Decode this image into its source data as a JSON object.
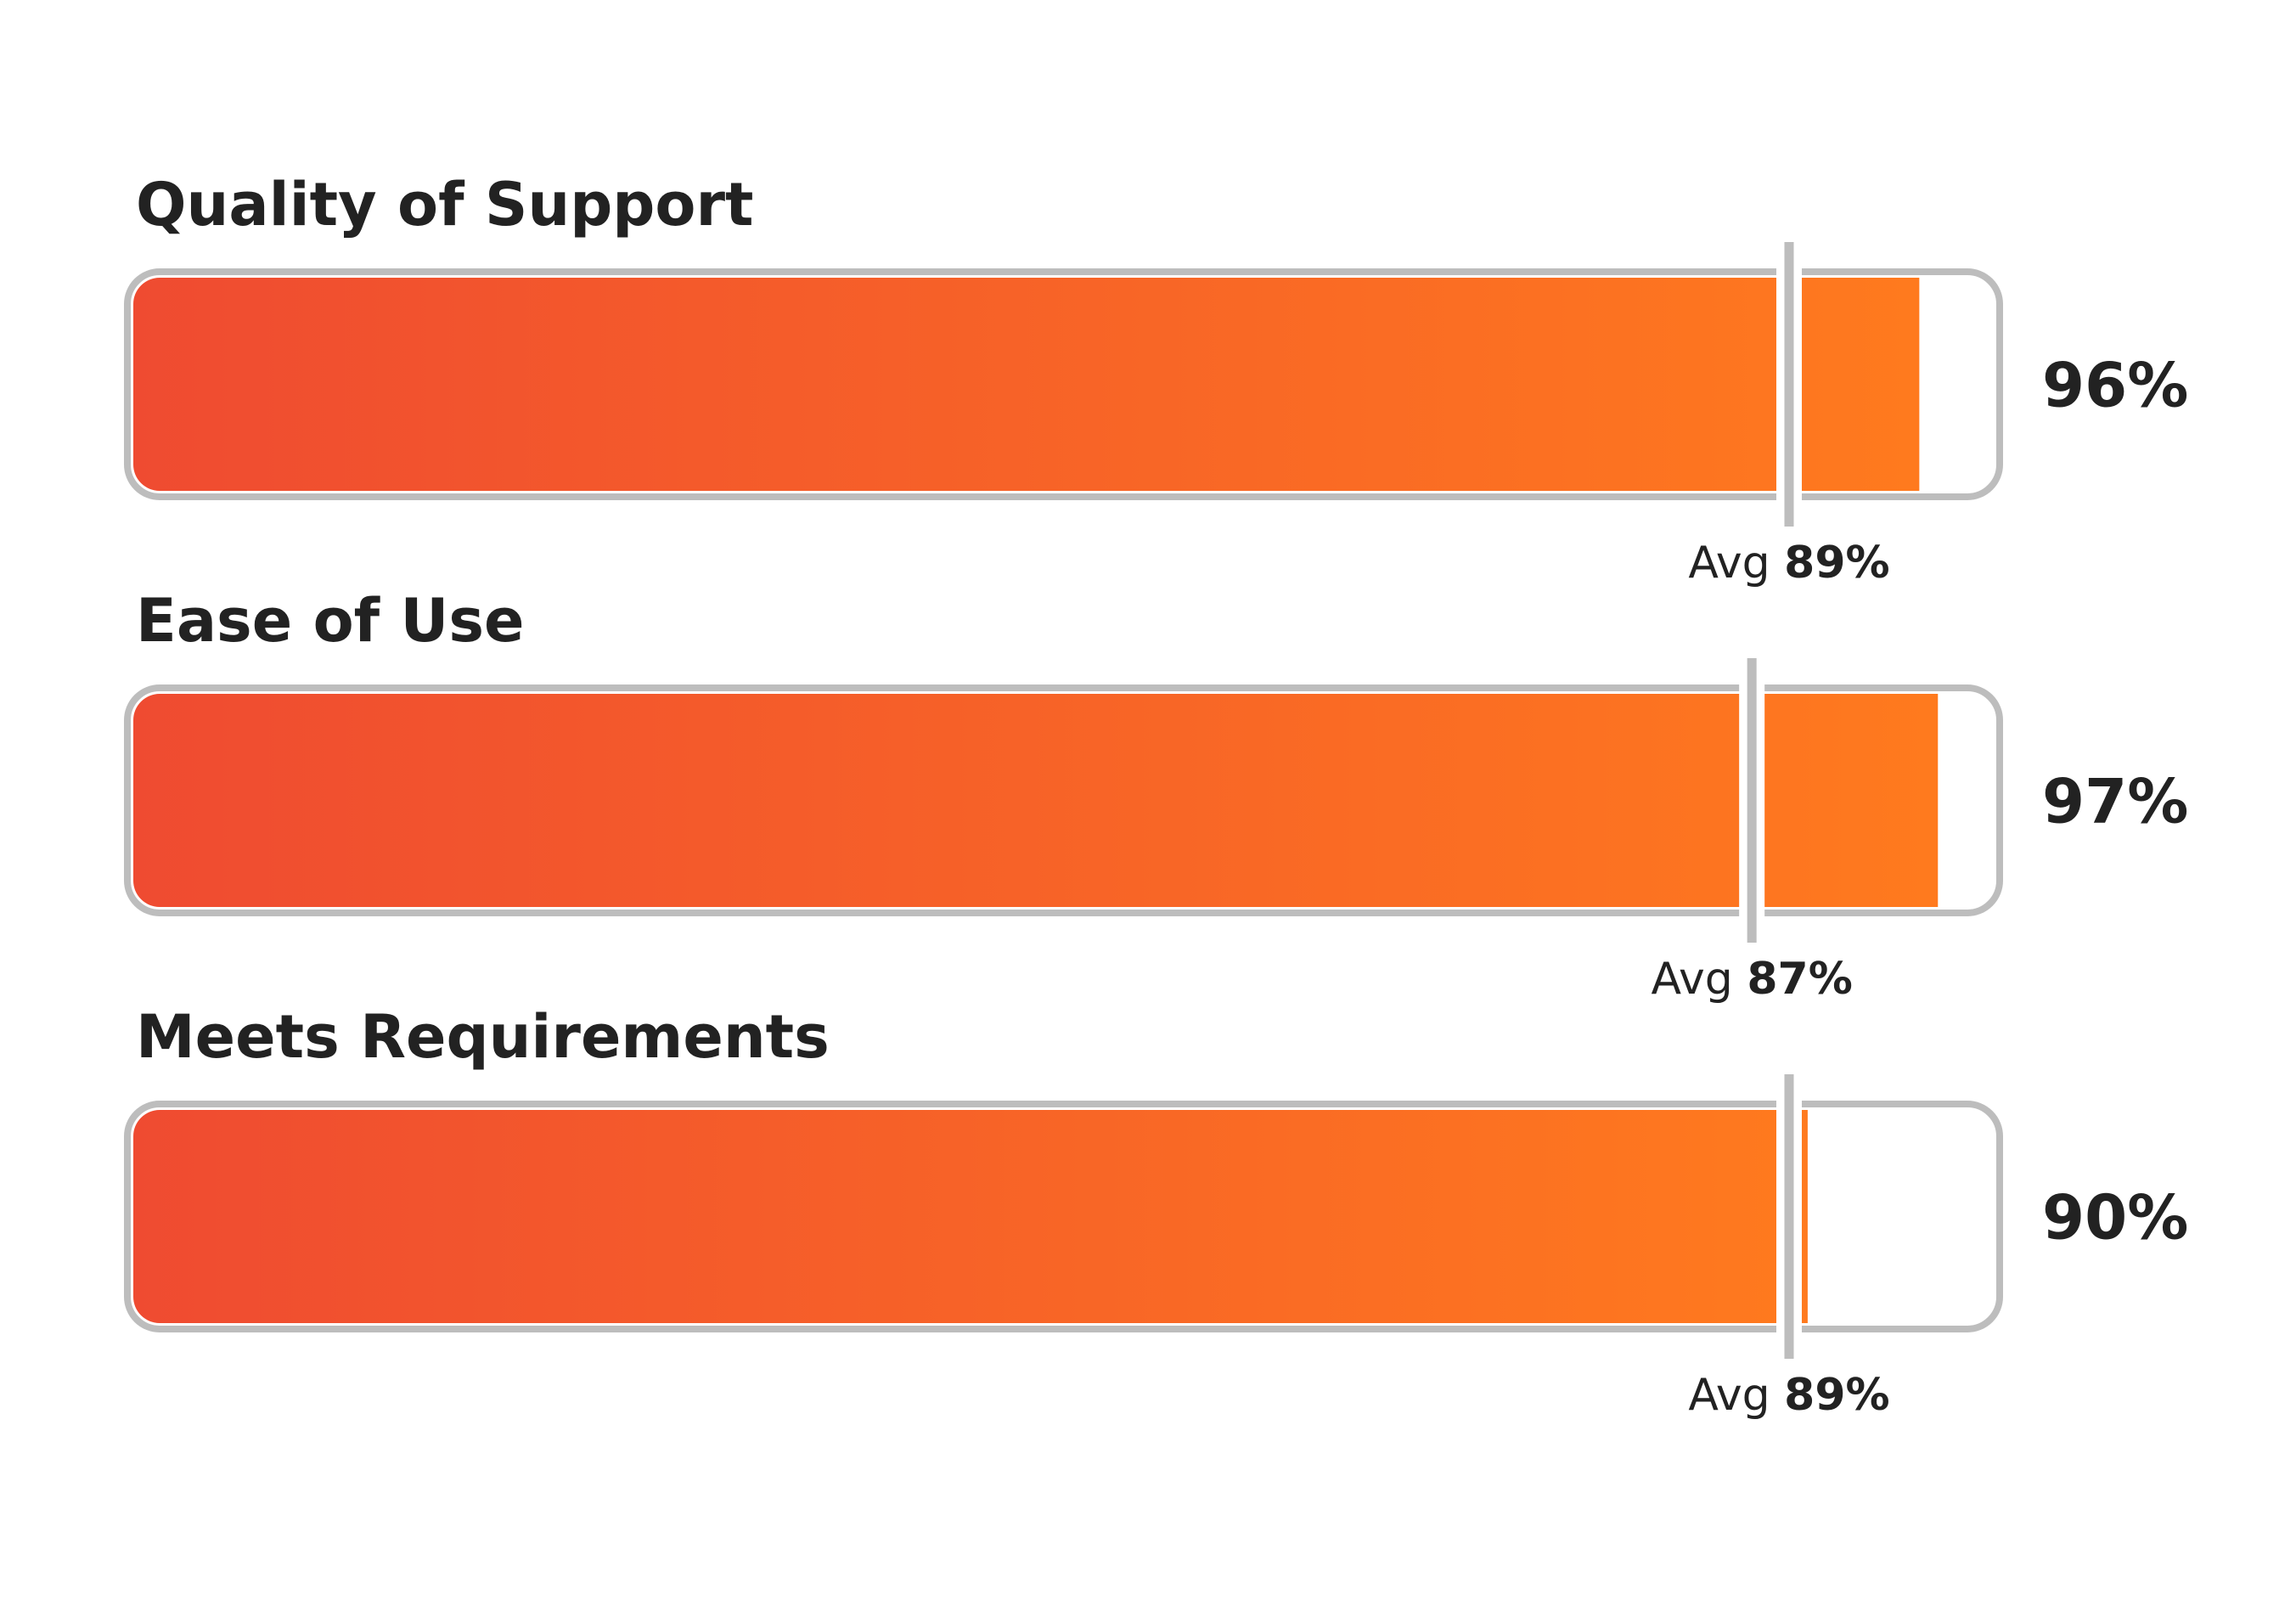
{
  "chart_data": {
    "type": "bar",
    "orientation": "horizontal",
    "xlim": [
      0,
      100
    ],
    "unit": "%",
    "avg_prefix": "Avg",
    "colors": {
      "gradient_start": "#EF4B31",
      "gradient_end": "#FF7A1E",
      "track_border": "#BDBDBD",
      "marker": "#BDBDBD",
      "text": "#222222"
    },
    "categories": [
      "Quality of Support",
      "Ease of Use",
      "Meets Requirements"
    ],
    "values": [
      96,
      97,
      90
    ],
    "averages": [
      89,
      87,
      89
    ],
    "value_labels": [
      "96%",
      "97%",
      "90%"
    ],
    "average_labels": [
      "89%",
      "87%",
      "89%"
    ]
  }
}
